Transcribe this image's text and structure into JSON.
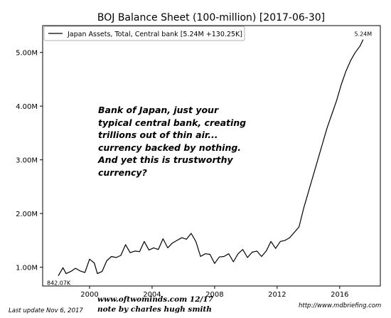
{
  "chart_data": {
    "type": "line",
    "title": "BOJ Balance Sheet (100-million) [2017-06-30]",
    "xlabel": "",
    "ylabel": "",
    "xlim": [
      1997.0,
      2018.6
    ],
    "ylim": [
      0.65,
      5.5
    ],
    "x_ticks": [
      2000,
      2004,
      2008,
      2012,
      2016
    ],
    "x_tick_labels": [
      "2000",
      "2004",
      "2008",
      "2012",
      "2016"
    ],
    "y_ticks": [
      1.0,
      2.0,
      3.0,
      4.0,
      5.0
    ],
    "y_tick_labels": [
      "1.00M",
      "2.00M",
      "3.00M",
      "4.00M",
      "5.00M"
    ],
    "legend_position": "top-left",
    "grid": false,
    "series": [
      {
        "name": "Japan Assets, Total, Central bank [5.24M +130.25K]",
        "color": "#000000",
        "start_label": "842.07K",
        "end_label": "5.24M",
        "x": [
          1998.0,
          1998.3,
          1998.5,
          1998.8,
          1999.1,
          1999.4,
          1999.7,
          2000.0,
          2000.3,
          2000.5,
          2000.8,
          2001.1,
          2001.4,
          2001.7,
          2002.0,
          2002.3,
          2002.6,
          2002.9,
          2003.2,
          2003.5,
          2003.8,
          2004.1,
          2004.4,
          2004.7,
          2005.0,
          2005.3,
          2005.6,
          2005.9,
          2006.2,
          2006.5,
          2006.8,
          2007.1,
          2007.4,
          2007.7,
          2008.0,
          2008.3,
          2008.6,
          2008.9,
          2009.2,
          2009.5,
          2009.8,
          2010.1,
          2010.4,
          2010.7,
          2011.0,
          2011.3,
          2011.6,
          2011.9,
          2012.2,
          2012.5,
          2012.8,
          2013.1,
          2013.4,
          2013.7,
          2014.0,
          2014.3,
          2014.6,
          2014.9,
          2015.2,
          2015.5,
          2015.8,
          2016.1,
          2016.4,
          2016.7,
          2017.0,
          2017.3,
          2017.5
        ],
        "values": [
          0.84,
          0.99,
          0.88,
          0.92,
          0.98,
          0.93,
          0.9,
          1.15,
          1.08,
          0.88,
          0.92,
          1.12,
          1.2,
          1.18,
          1.22,
          1.42,
          1.27,
          1.3,
          1.29,
          1.48,
          1.32,
          1.36,
          1.33,
          1.53,
          1.36,
          1.45,
          1.5,
          1.55,
          1.52,
          1.63,
          1.48,
          1.2,
          1.25,
          1.24,
          1.07,
          1.19,
          1.2,
          1.25,
          1.1,
          1.25,
          1.33,
          1.18,
          1.28,
          1.3,
          1.2,
          1.3,
          1.48,
          1.35,
          1.48,
          1.5,
          1.55,
          1.65,
          1.75,
          2.1,
          2.4,
          2.7,
          3.0,
          3.3,
          3.6,
          3.85,
          4.1,
          4.4,
          4.65,
          4.85,
          5.0,
          5.12,
          5.24
        ]
      }
    ],
    "annotation": "Bank of Japan, just your typical central bank, creating trillions out of thin air... currency backed by nothing. And yet this is trustworthy currency?"
  },
  "footer": {
    "last_update": "Last update Nov  6, 2017",
    "website": "www.oftwominds.com   12/17",
    "note": "note by charles hugh smith",
    "source_url": "http://www.mdbriefing.com"
  }
}
